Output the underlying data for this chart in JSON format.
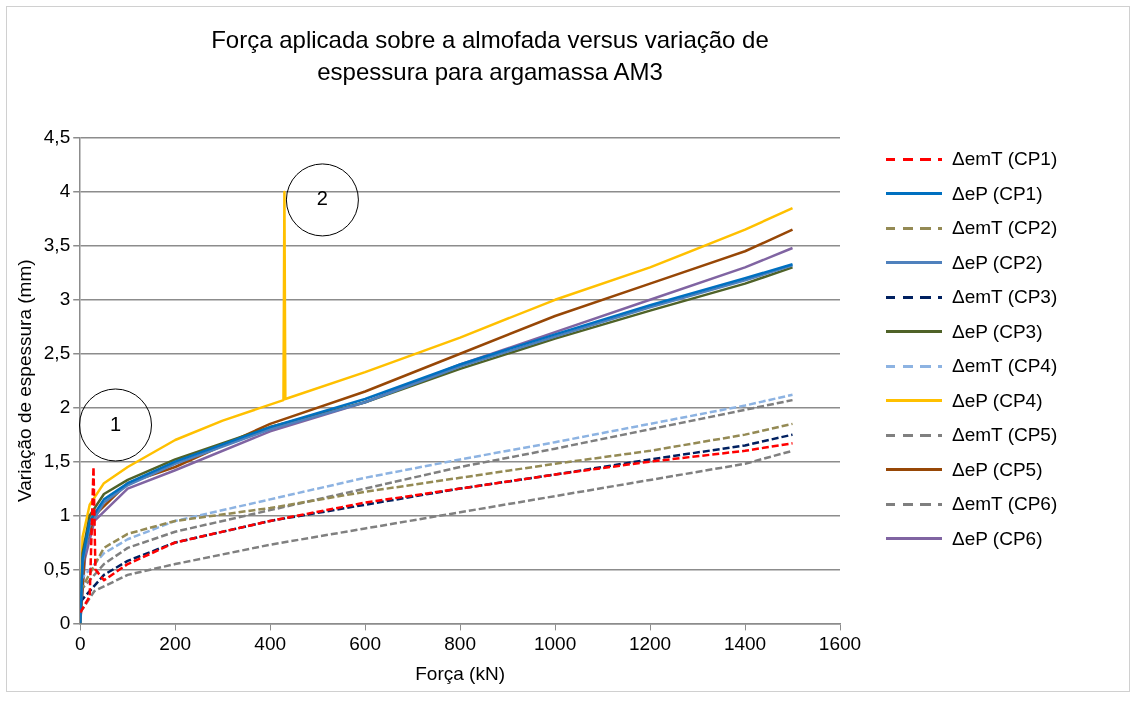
{
  "chart_data": {
    "type": "line",
    "title": "Força aplicada sobre a almofada versus variação de espessura para argamassa AM3",
    "xlabel": "Força (kN)",
    "ylabel": "Variação de espessura (mm)",
    "xlim": [
      0,
      1600
    ],
    "xticks": [
      0,
      200,
      400,
      600,
      800,
      1000,
      1200,
      1400,
      1600
    ],
    "ylim": [
      0,
      4.5
    ],
    "yticks": [
      {
        "value": 0,
        "label": "0"
      },
      {
        "value": 0.5,
        "label": "0,5"
      },
      {
        "value": 1,
        "label": "1"
      },
      {
        "value": 1.5,
        "label": "1,5"
      },
      {
        "value": 2,
        "label": "2"
      },
      {
        "value": 2.5,
        "label": "2,5"
      },
      {
        "value": 3,
        "label": "3"
      },
      {
        "value": 3.5,
        "label": "3,5"
      },
      {
        "value": 4,
        "label": "4"
      },
      {
        "value": 4.5,
        "label": "4,5"
      }
    ],
    "grid": "y",
    "legend": "right",
    "marker": "none",
    "annotations": [
      {
        "text": "1",
        "x": 28,
        "y": 1.45
      },
      {
        "text": "2",
        "x": 430,
        "y": 4
      }
    ],
    "series": [
      {
        "name": "ΔemT (CP1)",
        "color": "#ff0000",
        "line_style": "dashed",
        "x": [
          0,
          20,
          28,
          32,
          50,
          100,
          200,
          400,
          600,
          800,
          1000,
          1200,
          1400,
          1500
        ],
        "values": [
          0.1,
          0.25,
          1.45,
          0.5,
          0.4,
          0.55,
          0.75,
          0.95,
          1.12,
          1.25,
          1.38,
          1.5,
          1.6,
          1.67
        ]
      },
      {
        "name": "ΔeP (CP1)",
        "color": "#0070c0",
        "line_style": "solid",
        "x": [
          0,
          5,
          20,
          50,
          100,
          200,
          400,
          600,
          800,
          1000,
          1200,
          1400,
          1500
        ],
        "values": [
          0,
          0.6,
          0.95,
          1.15,
          1.3,
          1.5,
          1.82,
          2.08,
          2.4,
          2.68,
          2.95,
          3.2,
          3.33
        ]
      },
      {
        "name": "ΔemT (CP2)",
        "color": "#948a54",
        "line_style": "dashed",
        "x": [
          0,
          50,
          100,
          200,
          400,
          600,
          800,
          1000,
          1200,
          1400,
          1500
        ],
        "values": [
          0.3,
          0.7,
          0.83,
          0.95,
          1.07,
          1.22,
          1.35,
          1.48,
          1.6,
          1.75,
          1.85
        ]
      },
      {
        "name": "ΔeP (CP2)",
        "color": "#4f81bd",
        "line_style": "solid",
        "x": [
          0,
          5,
          20,
          50,
          100,
          200,
          400,
          600,
          800,
          1000,
          1200,
          1400,
          1500
        ],
        "values": [
          0,
          0.55,
          0.9,
          1.12,
          1.28,
          1.48,
          1.8,
          2.05,
          2.38,
          2.66,
          2.93,
          3.18,
          3.32
        ]
      },
      {
        "name": "ΔemT (CP3)",
        "color": "#002060",
        "line_style": "dashed",
        "x": [
          0,
          50,
          100,
          200,
          400,
          600,
          800,
          1000,
          1200,
          1400,
          1500
        ],
        "values": [
          0.2,
          0.45,
          0.58,
          0.75,
          0.95,
          1.1,
          1.25,
          1.38,
          1.52,
          1.65,
          1.75
        ]
      },
      {
        "name": "ΔeP (CP3)",
        "color": "#4f6228",
        "line_style": "solid",
        "x": [
          0,
          5,
          20,
          50,
          100,
          200,
          400,
          600,
          800,
          1000,
          1200,
          1400,
          1500
        ],
        "values": [
          0,
          0.65,
          1.0,
          1.2,
          1.33,
          1.52,
          1.82,
          2.05,
          2.36,
          2.64,
          2.9,
          3.15,
          3.3
        ]
      },
      {
        "name": "ΔemT (CP4)",
        "color": "#8db3e2",
        "line_style": "dashed",
        "x": [
          0,
          50,
          100,
          200,
          400,
          600,
          800,
          1000,
          1200,
          1400,
          1500
        ],
        "values": [
          0.4,
          0.65,
          0.78,
          0.95,
          1.15,
          1.35,
          1.52,
          1.68,
          1.85,
          2.02,
          2.12
        ]
      },
      {
        "name": "ΔeP (CP4)",
        "color": "#ffc000",
        "line_style": "solid",
        "x": [
          0,
          5,
          20,
          50,
          100,
          200,
          300,
          428,
          430,
          432,
          600,
          800,
          1000,
          1200,
          1400,
          1500
        ],
        "values": [
          0,
          0.8,
          1.1,
          1.3,
          1.45,
          1.7,
          1.88,
          2.07,
          4.0,
          2.08,
          2.33,
          2.65,
          3.0,
          3.3,
          3.65,
          3.85
        ]
      },
      {
        "name": "ΔemT (CP5)",
        "color": "#808080",
        "line_style": "dashed",
        "x": [
          0,
          30,
          100,
          200,
          400,
          600,
          800,
          1000,
          1200,
          1400,
          1500
        ],
        "values": [
          0.1,
          0.3,
          0.45,
          0.55,
          0.73,
          0.88,
          1.03,
          1.18,
          1.33,
          1.48,
          1.6
        ]
      },
      {
        "name": "ΔeP (CP5)",
        "color": "#974706",
        "line_style": "solid",
        "x": [
          0,
          10,
          30,
          100,
          200,
          400,
          600,
          800,
          1000,
          1200,
          1400,
          1500
        ],
        "values": [
          0,
          0.7,
          1.0,
          1.3,
          1.45,
          1.85,
          2.15,
          2.5,
          2.85,
          3.15,
          3.45,
          3.65
        ]
      },
      {
        "name": "ΔemT (CP6)",
        "color": "#7f7f7f",
        "line_style": "dashed",
        "x": [
          0,
          50,
          100,
          200,
          400,
          600,
          800,
          1000,
          1200,
          1400,
          1500
        ],
        "values": [
          0.3,
          0.55,
          0.7,
          0.85,
          1.05,
          1.25,
          1.45,
          1.62,
          1.8,
          1.98,
          2.07
        ]
      },
      {
        "name": "ΔeP (CP6)",
        "color": "#8064a2",
        "line_style": "solid",
        "x": [
          0,
          10,
          30,
          100,
          200,
          400,
          600,
          800,
          1000,
          1200,
          1400,
          1500
        ],
        "values": [
          0,
          0.6,
          0.95,
          1.25,
          1.42,
          1.78,
          2.05,
          2.4,
          2.7,
          3.0,
          3.3,
          3.48
        ]
      }
    ]
  }
}
